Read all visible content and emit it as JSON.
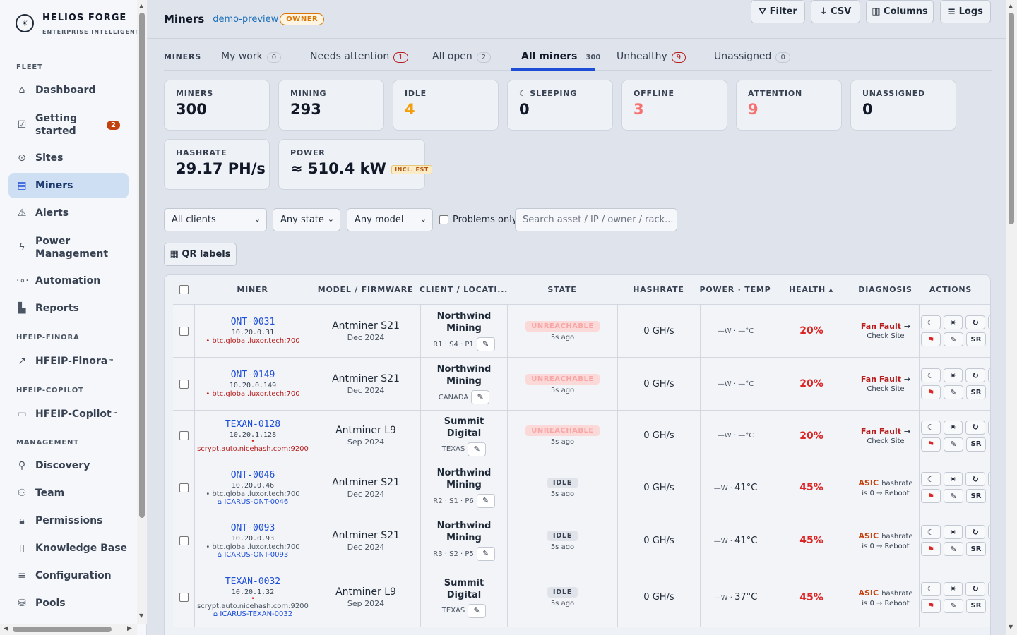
{
  "brand": {
    "name": "HELIOS FORGE",
    "subtitle": "ENTERPRISE INTELLIGENT PLATF"
  },
  "sidebar": {
    "fleet_heading": "FLEET",
    "fleet": [
      {
        "label": "Dashboard",
        "icon": "home-icon"
      },
      {
        "label": "Getting started",
        "badge": "2",
        "icon": "checklist-icon"
      },
      {
        "label": "Sites",
        "icon": "pin-icon"
      },
      {
        "label": "Miners",
        "icon": "server-icon",
        "active": true
      },
      {
        "label": "Alerts",
        "icon": "warning-icon"
      },
      {
        "label": "Power Management",
        "icon": "bolt-icon"
      },
      {
        "label": "Automation",
        "icon": "automation-icon"
      },
      {
        "label": "Reports",
        "icon": "bar-chart-icon"
      }
    ],
    "finora_heading": "HFEIP-FINORA",
    "finora": [
      {
        "label": "HFEIP-Finora",
        "tm": "™",
        "icon": "trend-icon"
      }
    ],
    "copilot_heading": "HFEIP-COPILOT",
    "copilot": [
      {
        "label": "HFEIP-Copilot",
        "tm": "™",
        "icon": "chat-icon"
      }
    ],
    "management_heading": "MANAGEMENT",
    "management": [
      {
        "label": "Discovery",
        "icon": "search-icon"
      },
      {
        "label": "Team",
        "icon": "team-icon"
      },
      {
        "label": "Permissions",
        "icon": "lock-icon"
      },
      {
        "label": "Knowledge Base",
        "icon": "book-icon"
      },
      {
        "label": "Configuration",
        "icon": "menu-icon"
      },
      {
        "label": "Pools",
        "icon": "database-icon"
      }
    ]
  },
  "header": {
    "title": "Miners",
    "slug": "demo-preview",
    "role": "OWNER"
  },
  "tabs": {
    "label": "MINERS",
    "items": [
      {
        "label": "My work",
        "count": "0"
      },
      {
        "label": "Needs attention",
        "count": "1",
        "alert": true
      },
      {
        "label": "All open",
        "count": "2"
      },
      {
        "label": "All miners",
        "count": "300",
        "active": true
      },
      {
        "label": "Unhealthy",
        "count": "9",
        "alert": true
      },
      {
        "label": "Unassigned",
        "count": "0"
      }
    ]
  },
  "stats": [
    {
      "label": "MINERS",
      "value": "300",
      "color": "default"
    },
    {
      "label": "MINING",
      "value": "293",
      "color": "default"
    },
    {
      "label": "IDLE",
      "value": "4",
      "color": "orange"
    },
    {
      "label": "☾ SLEEPING",
      "value": "0",
      "color": "default"
    },
    {
      "label": "OFFLINE",
      "value": "3",
      "color": "red"
    },
    {
      "label": "ATTENTION",
      "value": "9",
      "color": "red"
    },
    {
      "label": "UNASSIGNED",
      "value": "0",
      "color": "default"
    }
  ],
  "stats2": {
    "hashrate_label": "HASHRATE",
    "hashrate_value": "29.17 PH/s",
    "power_label": "POWER",
    "power_value": "≈ 510.4 kW",
    "power_badge": "INCL. EST"
  },
  "filters": {
    "clients": "All clients",
    "state": "Any state",
    "model": "Any model",
    "problems_only": "Problems only",
    "search_placeholder": "Search asset / IP / owner / rack...",
    "filter_btn": "⛛ Filter",
    "csv_btn": "↓ CSV",
    "columns_btn": "▥ Columns",
    "logs_btn": "≡ Logs",
    "qr_btn": "▦ QR labels"
  },
  "table": {
    "headers": [
      "MINER",
      "MODEL / FIRMWARE",
      "CLIENT / LOCATI...",
      "STATE",
      "HASHRATE",
      "POWER · TEMP",
      "HEALTH ▴",
      "DIAGNOSIS",
      "ACTIONS"
    ],
    "rows": [
      {
        "id": "ONT-0031",
        "ip": "10.20.0.31",
        "pool": "• btc.global.luxor.tech:700",
        "pool_red": true,
        "icarus": "",
        "model": "Antminer S21",
        "fw": "Dec 2024",
        "client": "Northwind Mining",
        "loc": "R1 · S4 · P1",
        "state": "UNREACHABLE",
        "ago": "5s ago",
        "hash": "0 GH/s",
        "pw": "—W · —°C",
        "temp": "",
        "health": "20%",
        "d1": "Fan Fault",
        "d2": "Check Site",
        "asic": false
      },
      {
        "id": "ONT-0149",
        "ip": "10.20.0.149",
        "pool": "• btc.global.luxor.tech:700",
        "pool_red": true,
        "icarus": "",
        "model": "Antminer S21",
        "fw": "Dec 2024",
        "client": "Northwind Mining",
        "loc": "CANADA",
        "state": "UNREACHABLE",
        "ago": "5s ago",
        "hash": "0 GH/s",
        "pw": "—W · —°C",
        "temp": "",
        "health": "20%",
        "d1": "Fan Fault",
        "d2": "Check Site",
        "asic": false
      },
      {
        "id": "TEXAN-0128",
        "ip": "10.20.1.128",
        "pool": "scrypt.auto.nicehash.com:9200",
        "pool_red": true,
        "icarus": "",
        "model": "Antminer L9",
        "fw": "Sep 2024",
        "client": "Summit Digital",
        "loc": "TEXAS",
        "state": "UNREACHABLE",
        "ago": "5s ago",
        "hash": "0 GH/s",
        "pw": "—W · —°C",
        "temp": "",
        "health": "20%",
        "d1": "Fan Fault",
        "d2": "Check Site",
        "asic": false
      },
      {
        "id": "ONT-0046",
        "ip": "10.20.0.46",
        "pool": "• btc.global.luxor.tech:700",
        "pool_red": false,
        "icarus": "⌂ ICARUS-ONT-0046",
        "model": "Antminer S21",
        "fw": "Dec 2024",
        "client": "Northwind Mining",
        "loc": "R2 · S1 · P6",
        "state": "IDLE",
        "ago": "5s ago",
        "hash": "0 GH/s",
        "pw": "—W · ",
        "temp": "41°C",
        "health": "45%",
        "d1": "ASIC",
        "d1b": "hashrate",
        "d2": "is 0 → Reboot",
        "asic": true
      },
      {
        "id": "ONT-0093",
        "ip": "10.20.0.93",
        "pool": "• btc.global.luxor.tech:700",
        "pool_red": false,
        "icarus": "⌂ ICARUS-ONT-0093",
        "model": "Antminer S21",
        "fw": "Dec 2024",
        "client": "Northwind Mining",
        "loc": "R3 · S2 · P5",
        "state": "IDLE",
        "ago": "5s ago",
        "hash": "0 GH/s",
        "pw": "—W · ",
        "temp": "41°C",
        "health": "45%",
        "d1": "ASIC",
        "d1b": "hashrate",
        "d2": "is 0 → Reboot",
        "asic": true
      },
      {
        "id": "TEXAN-0032",
        "ip": "10.20.1.32",
        "pool": "scrypt.auto.nicehash.com:9200",
        "pool_red": false,
        "icarus": "⌂ ICARUS-TEXAN-0032",
        "model": "Antminer L9",
        "fw": "Sep 2024",
        "client": "Summit Digital",
        "loc": "TEXAS",
        "state": "IDLE",
        "ago": "5s ago",
        "hash": "0 GH/s",
        "pw": "—W · ",
        "temp": "37°C",
        "health": "45%",
        "d1": "ASIC",
        "d1b": "hashrate",
        "d2": "is 0 → Reboot",
        "asic": true
      }
    ]
  },
  "colors": {
    "accent": "#1d4ed8",
    "danger": "#dc2626",
    "warning": "#f59e0b"
  }
}
